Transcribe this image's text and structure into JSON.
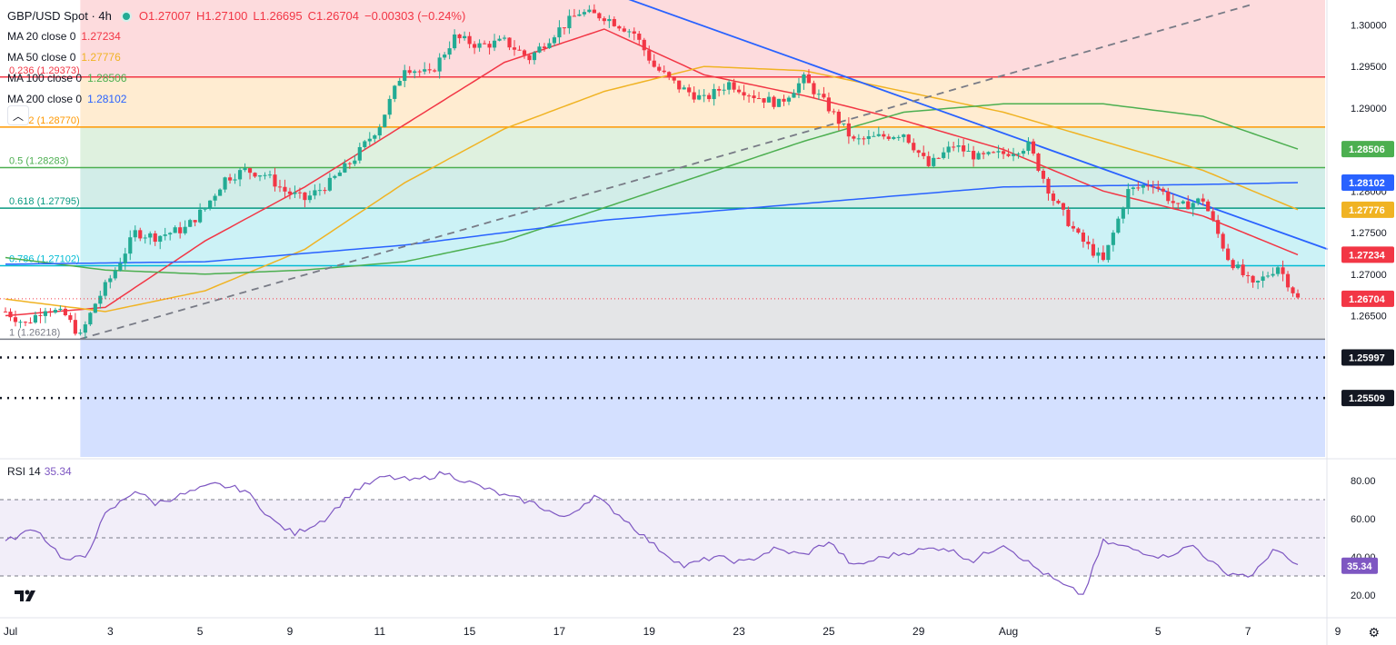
{
  "header": {
    "symbol": "GBP/USD Spot · 4h",
    "open": "O1.27007",
    "high": "H1.27100",
    "low": "L1.26695",
    "close": "C1.26704",
    "change": "−0.00303 (−0.24%)"
  },
  "moving_averages": [
    {
      "label": "MA 20 close 0",
      "value": "1.27234",
      "color": "#f23645"
    },
    {
      "label": "MA 50 close 0",
      "value": "1.27776",
      "color": "#f0b323"
    },
    {
      "label": "MA 100 close 0",
      "value": "1.28506",
      "color": "#4caf50"
    },
    {
      "label": "MA 200 close 0",
      "value": "1.28102",
      "color": "#2962ff"
    }
  ],
  "rsi_legend": {
    "label": "RSI 14",
    "value": "35.34"
  },
  "colors": {
    "up": "#22ab94",
    "down": "#f23645",
    "rsi": "#7e57c2",
    "trendline": "#2962ff"
  },
  "chart_data": {
    "type": "candlestick",
    "price_axis": {
      "ylim": [
        1.248,
        1.303
      ],
      "ticks": [
        "1.30000",
        "1.29500",
        "1.29000",
        "1.28500",
        "1.28000",
        "1.27500",
        "1.27000",
        "1.26500"
      ],
      "tick_values": [
        1.3,
        1.295,
        1.29,
        1.285,
        1.28,
        1.275,
        1.27,
        1.265
      ]
    },
    "x_axis": {
      "ticks": [
        "Jul",
        "3",
        "5",
        "9",
        "11",
        "15",
        "17",
        "19",
        "23",
        "25",
        "29",
        "Aug",
        "5",
        "7",
        "9"
      ],
      "tick_bars": [
        1,
        21,
        39,
        57,
        75,
        93,
        111,
        129,
        147,
        165,
        183,
        201,
        231,
        249,
        267
      ]
    },
    "bars": 260,
    "fibonacci": [
      {
        "label": "0.236 (1.29373)",
        "value": 1.29373,
        "color": "#f23645"
      },
      {
        "label": "0.382 (1.28770)",
        "value": 1.2877,
        "color": "#ff9800"
      },
      {
        "label": "0.5 (1.28283)",
        "value": 1.28283,
        "color": "#4caf50"
      },
      {
        "label": "0.618 (1.27795)",
        "value": 1.27795,
        "color": "#089981"
      },
      {
        "label": "0.786 (1.27102)",
        "value": 1.27102,
        "color": "#00bcd4"
      },
      {
        "label": "1 (1.26218)",
        "value": 1.26218,
        "color": "#787b86"
      }
    ],
    "fib_zones": [
      {
        "from": 1.303,
        "to": 1.29373,
        "color": "rgba(242,54,69,0.18)"
      },
      {
        "from": 1.29373,
        "to": 1.2877,
        "color": "rgba(255,152,0,0.18)"
      },
      {
        "from": 1.2877,
        "to": 1.28283,
        "color": "rgba(76,175,80,0.18)"
      },
      {
        "from": 1.28283,
        "to": 1.27795,
        "color": "rgba(8,153,129,0.18)"
      },
      {
        "from": 1.27795,
        "to": 1.27102,
        "color": "rgba(0,188,212,0.20)"
      },
      {
        "from": 1.27102,
        "to": 1.26218,
        "color": "rgba(120,123,134,0.20)"
      },
      {
        "from": 1.26218,
        "to": 1.248,
        "color": "rgba(41,98,255,0.20)"
      }
    ],
    "levels": [
      {
        "label": "1.25997",
        "value": 1.25997
      },
      {
        "label": "1.25509",
        "value": 1.25509
      }
    ],
    "price_labels": [
      {
        "label": "1.28506",
        "value": 1.28506,
        "color": "#4caf50"
      },
      {
        "label": "1.28102",
        "value": 1.28102,
        "color": "#2962ff"
      },
      {
        "label": "1.27776",
        "value": 1.27776,
        "color": "#f0b323"
      },
      {
        "label": "1.27234",
        "value": 1.27234,
        "color": "#f23645"
      },
      {
        "label": "1.26704",
        "value": 1.26704,
        "color": "#f23645"
      },
      {
        "label": "1.25997",
        "value": 1.25997,
        "color": "#131722"
      },
      {
        "label": "1.25509",
        "value": 1.25509,
        "color": "#131722"
      }
    ],
    "keypoints": [
      [
        0,
        1.2655
      ],
      [
        4,
        1.264
      ],
      [
        8,
        1.266
      ],
      [
        12,
        1.265
      ],
      [
        15,
        1.2625
      ],
      [
        18,
        1.2665
      ],
      [
        22,
        1.2705
      ],
      [
        26,
        1.275
      ],
      [
        30,
        1.2745
      ],
      [
        36,
        1.2755
      ],
      [
        40,
        1.278
      ],
      [
        44,
        1.2815
      ],
      [
        48,
        1.2825
      ],
      [
        52,
        1.282
      ],
      [
        56,
        1.28
      ],
      [
        60,
        1.279
      ],
      [
        65,
        1.281
      ],
      [
        70,
        1.284
      ],
      [
        75,
        1.288
      ],
      [
        80,
        1.295
      ],
      [
        85,
        1.294
      ],
      [
        90,
        1.2985
      ],
      [
        95,
        1.2975
      ],
      [
        100,
        1.298
      ],
      [
        105,
        1.296
      ],
      [
        110,
        1.299
      ],
      [
        115,
        1.3015
      ],
      [
        120,
        1.301
      ],
      [
        126,
        1.299
      ],
      [
        130,
        1.295
      ],
      [
        135,
        1.2925
      ],
      [
        140,
        1.291
      ],
      [
        145,
        1.293
      ],
      [
        150,
        1.2915
      ],
      [
        155,
        1.2905
      ],
      [
        160,
        1.2935
      ],
      [
        165,
        1.29
      ],
      [
        170,
        1.286
      ],
      [
        175,
        1.2865
      ],
      [
        180,
        1.287
      ],
      [
        185,
        1.283
      ],
      [
        190,
        1.2855
      ],
      [
        195,
        1.284
      ],
      [
        200,
        1.2845
      ],
      [
        205,
        1.2855
      ],
      [
        210,
        1.279
      ],
      [
        215,
        1.2745
      ],
      [
        220,
        1.2715
      ],
      [
        225,
        1.28
      ],
      [
        230,
        1.281
      ],
      [
        235,
        1.278
      ],
      [
        240,
        1.279
      ],
      [
        245,
        1.272
      ],
      [
        250,
        1.2685
      ],
      [
        255,
        1.271
      ],
      [
        259,
        1.267
      ]
    ],
    "ma_keypoints": {
      "ma20": [
        [
          0,
          1.265
        ],
        [
          20,
          1.266
        ],
        [
          40,
          1.274
        ],
        [
          60,
          1.2805
        ],
        [
          80,
          1.288
        ],
        [
          100,
          1.2955
        ],
        [
          120,
          1.2995
        ],
        [
          140,
          1.294
        ],
        [
          160,
          1.2915
        ],
        [
          180,
          1.2885
        ],
        [
          200,
          1.285
        ],
        [
          220,
          1.28
        ],
        [
          240,
          1.277
        ],
        [
          259,
          1.27234
        ]
      ],
      "ma50": [
        [
          0,
          1.267
        ],
        [
          20,
          1.2655
        ],
        [
          40,
          1.268
        ],
        [
          60,
          1.273
        ],
        [
          80,
          1.281
        ],
        [
          100,
          1.2875
        ],
        [
          120,
          1.292
        ],
        [
          140,
          1.295
        ],
        [
          160,
          1.2945
        ],
        [
          180,
          1.292
        ],
        [
          200,
          1.2895
        ],
        [
          220,
          1.286
        ],
        [
          240,
          1.2825
        ],
        [
          259,
          1.27776
        ]
      ],
      "ma100": [
        [
          0,
          1.272
        ],
        [
          20,
          1.2705
        ],
        [
          40,
          1.27
        ],
        [
          60,
          1.2705
        ],
        [
          80,
          1.2715
        ],
        [
          100,
          1.274
        ],
        [
          120,
          1.278
        ],
        [
          140,
          1.282
        ],
        [
          160,
          1.286
        ],
        [
          180,
          1.2895
        ],
        [
          200,
          1.2905
        ],
        [
          220,
          1.2905
        ],
        [
          240,
          1.289
        ],
        [
          259,
          1.28506
        ]
      ],
      "ma200": [
        [
          0,
          1.2712
        ],
        [
          40,
          1.2715
        ],
        [
          80,
          1.2735
        ],
        [
          120,
          1.2765
        ],
        [
          160,
          1.2785
        ],
        [
          200,
          1.2805
        ],
        [
          240,
          1.2808
        ],
        [
          259,
          1.28102
        ]
      ]
    },
    "trendlines": [
      {
        "style": "solid",
        "color": "#2962ff",
        "from": [
          123,
          1.3035
        ],
        "to": [
          265,
          1.273
        ]
      },
      {
        "style": "dashed",
        "color": "#787b86",
        "from": [
          15,
          1.2622
        ],
        "to": [
          250,
          1.3025
        ]
      }
    ],
    "rsi": {
      "name": "RSI 14",
      "ylim": [
        10,
        90
      ],
      "ticks": [
        "80.00",
        "60.00",
        "40.00",
        "20.00"
      ],
      "tick_values": [
        80,
        60,
        40,
        20
      ],
      "bands": [
        70,
        50,
        30
      ],
      "keypoints": [
        [
          0,
          48
        ],
        [
          6,
          55
        ],
        [
          12,
          38
        ],
        [
          16,
          40
        ],
        [
          20,
          62
        ],
        [
          26,
          75
        ],
        [
          30,
          68
        ],
        [
          36,
          73
        ],
        [
          42,
          78
        ],
        [
          48,
          75
        ],
        [
          54,
          58
        ],
        [
          58,
          52
        ],
        [
          64,
          60
        ],
        [
          70,
          75
        ],
        [
          76,
          82
        ],
        [
          82,
          80
        ],
        [
          88,
          84
        ],
        [
          94,
          78
        ],
        [
          100,
          72
        ],
        [
          106,
          68
        ],
        [
          112,
          60
        ],
        [
          118,
          72
        ],
        [
          124,
          60
        ],
        [
          130,
          46
        ],
        [
          136,
          35
        ],
        [
          142,
          40
        ],
        [
          148,
          37
        ],
        [
          154,
          44
        ],
        [
          160,
          41
        ],
        [
          165,
          48
        ],
        [
          170,
          35
        ],
        [
          176,
          40
        ],
        [
          182,
          43
        ],
        [
          188,
          45
        ],
        [
          194,
          38
        ],
        [
          200,
          47
        ],
        [
          206,
          35
        ],
        [
          212,
          25
        ],
        [
          216,
          20
        ],
        [
          220,
          48
        ],
        [
          226,
          44
        ],
        [
          232,
          40
        ],
        [
          238,
          46
        ],
        [
          244,
          32
        ],
        [
          250,
          30
        ],
        [
          254,
          44
        ],
        [
          259,
          35.34
        ]
      ]
    }
  }
}
